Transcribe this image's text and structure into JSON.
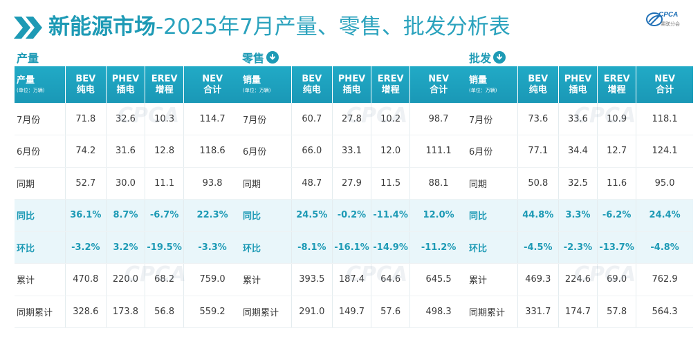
{
  "title": {
    "bold": "新能源市场",
    "rest": "-2025年7月产量、零售、批发分析表"
  },
  "brand": {
    "name": "CPCA",
    "sub": "乘联分会"
  },
  "sections": [
    {
      "label": "产量",
      "has_download": false
    },
    {
      "label": "零售",
      "has_download": true
    },
    {
      "label": "批发",
      "has_download": true
    }
  ],
  "tables": [
    {
      "header": {
        "title": "产量",
        "unit": "(单位：万辆)",
        "cols": [
          [
            "BEV",
            "纯电"
          ],
          [
            "PHEV",
            "插电"
          ],
          [
            "EREV",
            "增程"
          ],
          [
            "NEV",
            "合计"
          ]
        ]
      },
      "rows": [
        {
          "label": "7月份",
          "values": [
            "71.8",
            "32.6",
            "10.3",
            "114.7"
          ]
        },
        {
          "label": "6月份",
          "values": [
            "74.2",
            "31.6",
            "12.8",
            "118.6"
          ]
        },
        {
          "label": "同期",
          "values": [
            "52.7",
            "30.0",
            "11.1",
            "93.8"
          ]
        },
        {
          "label": "同比",
          "values": [
            "36.1%",
            "8.7%",
            "-6.7%",
            "22.3%"
          ]
        },
        {
          "label": "环比",
          "values": [
            "-3.2%",
            "3.2%",
            "-19.5%",
            "-3.3%"
          ]
        },
        {
          "label": "累计",
          "values": [
            "470.8",
            "220.0",
            "68.2",
            "759.0"
          ]
        },
        {
          "label": "同期累计",
          "values": [
            "328.6",
            "173.8",
            "56.8",
            "559.2"
          ]
        }
      ]
    },
    {
      "header": {
        "title": "销量",
        "unit": "(单位：万辆)",
        "cols": [
          [
            "BEV",
            "纯电"
          ],
          [
            "PHEV",
            "插电"
          ],
          [
            "EREV",
            "增程"
          ],
          [
            "NEV",
            "合计"
          ]
        ]
      },
      "rows": [
        {
          "label": "7月份",
          "values": [
            "60.7",
            "27.8",
            "10.2",
            "98.7"
          ]
        },
        {
          "label": "6月份",
          "values": [
            "66.0",
            "33.1",
            "12.0",
            "111.1"
          ]
        },
        {
          "label": "同期",
          "values": [
            "48.7",
            "27.9",
            "11.5",
            "88.1"
          ]
        },
        {
          "label": "同比",
          "values": [
            "24.5%",
            "-0.2%",
            "-11.4%",
            "12.0%"
          ]
        },
        {
          "label": "环比",
          "values": [
            "-8.1%",
            "-16.1%",
            "-14.9%",
            "-11.2%"
          ]
        },
        {
          "label": "累计",
          "values": [
            "393.5",
            "187.4",
            "64.6",
            "645.5"
          ]
        },
        {
          "label": "同期累计",
          "values": [
            "291.0",
            "149.7",
            "57.6",
            "498.3"
          ]
        }
      ]
    },
    {
      "header": {
        "title": "销量",
        "unit": "(单位：万辆)",
        "cols": [
          [
            "BEV",
            "纯电"
          ],
          [
            "PHEV",
            "插电"
          ],
          [
            "EREV",
            "增程"
          ],
          [
            "NEV",
            "合计"
          ]
        ]
      },
      "rows": [
        {
          "label": "7月份",
          "values": [
            "73.6",
            "33.6",
            "10.9",
            "118.1"
          ]
        },
        {
          "label": "6月份",
          "values": [
            "77.1",
            "34.4",
            "12.7",
            "124.1"
          ]
        },
        {
          "label": "同期",
          "values": [
            "50.8",
            "32.5",
            "11.6",
            "95.0"
          ]
        },
        {
          "label": "同比",
          "values": [
            "44.8%",
            "3.3%",
            "-6.2%",
            "24.4%"
          ]
        },
        {
          "label": "环比",
          "values": [
            "-4.5%",
            "-2.3%",
            "-13.7%",
            "-4.8%"
          ]
        },
        {
          "label": "累计",
          "values": [
            "469.3",
            "224.6",
            "69.0",
            "762.9"
          ]
        },
        {
          "label": "同期累计",
          "values": [
            "331.7",
            "174.7",
            "57.8",
            "564.3"
          ]
        }
      ]
    }
  ],
  "colors": {
    "accent": "#1d9ab5",
    "header_bg": "#1fa3c0",
    "highlight_row": "#e9f6fa"
  }
}
